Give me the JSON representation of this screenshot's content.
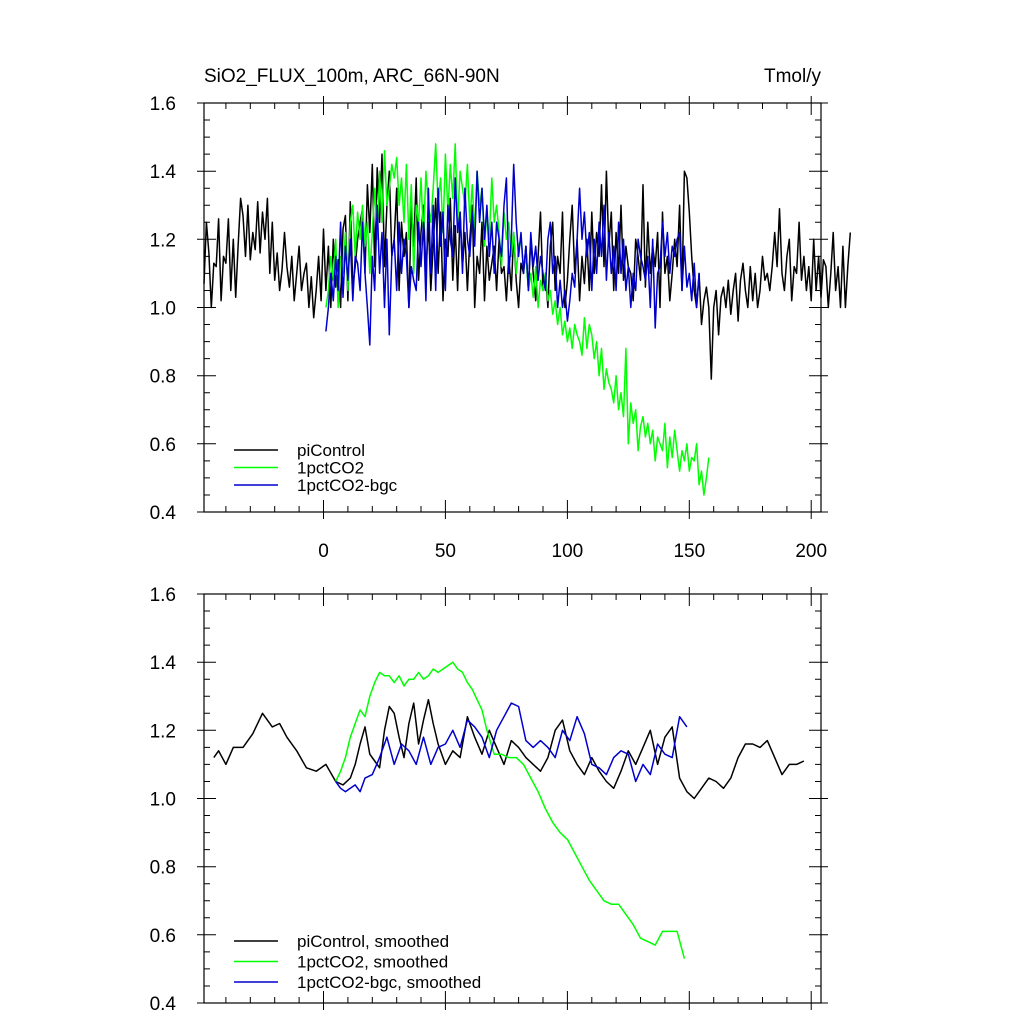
{
  "chart_data": [
    {
      "type": "line",
      "title": "SiO2_FLUX_100m, ARC_66N-90N",
      "units": "Tmol/y",
      "xlim": [
        -49,
        204
      ],
      "ylim": [
        0.4,
        1.6
      ],
      "xticks": [
        0,
        50,
        100,
        150,
        200
      ],
      "xtick_labels": [
        "0",
        "50",
        "100",
        "150",
        "200"
      ],
      "yticks": [
        0.4,
        0.6,
        0.8,
        1.0,
        1.2,
        1.4,
        1.6
      ],
      "ytick_labels": [
        "0.4",
        "0.6",
        "0.8",
        "1.0",
        "1.2",
        "1.4",
        "1.6"
      ],
      "legend_position": "bottom-left",
      "series": [
        {
          "name": "piControl",
          "color": "#000000",
          "x0": -49,
          "values": [
            1.07,
            1.25,
            1.16,
            1.0,
            1.13,
            1.12,
            1.26,
            1.02,
            1.15,
            1.13,
            1.26,
            1.05,
            1.2,
            1.03,
            1.18,
            1.32,
            1.27,
            1.15,
            1.3,
            1.14,
            1.22,
            1.17,
            1.31,
            1.16,
            1.28,
            1.2,
            1.32,
            1.1,
            1.25,
            1.08,
            1.16,
            1.05,
            1.11,
            1.22,
            1.12,
            1.06,
            1.15,
            1.02,
            1.1,
            1.18,
            1.05,
            1.1,
            1.13,
            1.0,
            1.09,
            0.97,
            1.05,
            1.15,
            1.02,
            1.23,
            1.05,
            1.18,
            1.0,
            1.2,
            1.06,
            1.14,
            1.0,
            1.23,
            1.27,
            1.02,
            1.31,
            1.06,
            1.12,
            1.2,
            1.25,
            1.29,
            1.1,
            1.36,
            1.22,
            1.42,
            1.12,
            1.41,
            1.25,
            1.45,
            1.12,
            1.3,
            1.4,
            1.15,
            1.2,
            1.35,
            1.05,
            1.25,
            1.15,
            1.22,
            1.0,
            1.3,
            1.18,
            1.38,
            1.08,
            1.22,
            1.3,
            1.1,
            1.25,
            1.05,
            1.18,
            1.32,
            1.1,
            1.28,
            1.02,
            1.2,
            1.15,
            1.32,
            1.08,
            1.24,
            1.05,
            1.28,
            1.12,
            1.22,
            1.05,
            1.2,
            1.3,
            1.0,
            1.15,
            1.1,
            1.25,
            1.02,
            1.18,
            1.08,
            1.13,
            1.18,
            1.05,
            1.2,
            1.1,
            1.12,
            1.02,
            1.15,
            1.05,
            1.22,
            1.08,
            1.0,
            1.13,
            1.1,
            1.18,
            1.05,
            1.2,
            1.1,
            1.02,
            1.15,
            1.28,
            1.05,
            1.1,
            1.0,
            1.18,
            1.25,
            1.05,
            1.15,
            1.1,
            1.28,
            1.0,
            1.08,
            1.2,
            1.3,
            1.1,
            1.2,
            1.02,
            1.15,
            1.07,
            1.2,
            1.05,
            1.28,
            1.1,
            1.22,
            1.15,
            1.36,
            1.12,
            1.4,
            1.18,
            1.28,
            1.05,
            1.22,
            1.1,
            1.3,
            1.08,
            1.18,
            1.12,
            1.1,
            1.02,
            1.2,
            1.15,
            1.08,
            1.36,
            1.06,
            1.25,
            1.1,
            1.18,
            1.12,
            1.22,
            1.0,
            1.28,
            1.1,
            1.15,
            1.02,
            1.1,
            1.2,
            1.12,
            1.3,
            1.05,
            1.4,
            1.38,
            1.28,
            1.15,
            1.05,
            1.0,
            1.1,
            0.95,
            1.02,
            1.06,
            1.0,
            0.79,
            1.0,
            1.05,
            0.92,
            1.03,
            1.06,
            1.0,
            1.08,
            0.98,
            1.05,
            1.1,
            0.96,
            1.08,
            1.13,
            1.05,
            1.0,
            1.12,
            1.02,
            1.1,
            1.0,
            1.05,
            1.15,
            1.08,
            1.1,
            1.05,
            1.12,
            1.22,
            1.12,
            1.29,
            1.1,
            1.05,
            1.15,
            1.2,
            1.02,
            1.12,
            1.1,
            1.25,
            1.08,
            1.15,
            1.05,
            1.12,
            1.02,
            1.2,
            1.05,
            1.15,
            1.03,
            1.14,
            1.12,
            1.0,
            1.1,
            1.22,
            1.05,
            1.12,
            1.0,
            1.18,
            1.0,
            1.12,
            1.22
          ]
        },
        {
          "name": "1pctCO2",
          "color": "#00ff00",
          "x0": 1,
          "values": [
            1.0,
            1.05,
            1.15,
            1.08,
            1.2,
            1.0,
            1.15,
            1.1,
            1.22,
            1.05,
            1.25,
            1.3,
            1.15,
            1.28,
            1.2,
            1.3,
            1.18,
            1.25,
            1.1,
            1.22,
            1.35,
            1.2,
            1.4,
            1.25,
            1.46,
            1.3,
            1.35,
            1.42,
            1.38,
            1.44,
            1.3,
            1.38,
            1.25,
            1.42,
            1.2,
            1.36,
            1.1,
            1.3,
            1.25,
            1.38,
            1.2,
            1.4,
            1.3,
            1.25,
            1.35,
            1.48,
            1.3,
            1.38,
            1.22,
            1.45,
            1.28,
            1.42,
            1.32,
            1.48,
            1.25,
            1.4,
            1.35,
            1.3,
            1.42,
            1.25,
            1.36,
            1.22,
            1.4,
            1.3,
            1.35,
            1.18,
            1.28,
            1.2,
            1.38,
            1.25,
            1.3,
            1.22,
            1.12,
            1.28,
            1.2,
            1.25,
            1.15,
            1.22,
            1.1,
            1.18,
            1.2,
            1.12,
            1.15,
            1.05,
            1.1,
            1.03,
            1.12,
            1.0,
            1.08,
            1.05,
            1.1,
            1.02,
            1.05,
            0.98,
            1.02,
            0.95,
            1.0,
            0.92,
            0.96,
            0.9,
            0.94,
            0.88,
            0.95,
            0.92,
            0.9,
            0.86,
            0.97,
            0.88,
            0.95,
            0.92,
            0.85,
            0.9,
            0.8,
            0.88,
            0.76,
            0.82,
            0.78,
            0.76,
            0.72,
            0.8,
            0.7,
            0.75,
            0.68,
            0.88,
            0.6,
            0.72,
            0.66,
            0.7,
            0.58,
            0.65,
            0.68,
            0.62,
            0.66,
            0.6,
            0.64,
            0.55,
            0.62,
            0.6,
            0.58,
            0.66,
            0.53,
            0.62,
            0.56,
            0.64,
            0.58,
            0.52,
            0.58,
            0.55,
            0.6,
            0.52,
            0.56,
            0.55,
            0.6,
            0.48,
            0.52,
            0.45,
            0.5,
            0.56
          ]
        },
        {
          "name": "1pctCO2-bgc",
          "color": "#0000cc",
          "x0": 1,
          "values": [
            0.93,
            1.0,
            1.1,
            1.02,
            1.15,
            1.05,
            1.25,
            1.03,
            1.18,
            1.08,
            1.2,
            1.02,
            1.15,
            1.13,
            1.05,
            1.25,
            1.1,
            1.0,
            0.89,
            1.15,
            1.05,
            1.3,
            1.1,
            1.22,
            1.0,
            1.2,
            0.92,
            1.15,
            1.2,
            1.05,
            1.25,
            1.1,
            1.2,
            1.15,
            1.0,
            1.12,
            1.08,
            1.05,
            1.25,
            1.12,
            1.25,
            1.02,
            1.35,
            1.1,
            1.3,
            1.05,
            1.35,
            1.18,
            1.28,
            1.05,
            1.3,
            1.2,
            1.15,
            1.38,
            1.22,
            1.28,
            1.1,
            1.35,
            1.2,
            1.15,
            1.28,
            1.18,
            1.4,
            1.25,
            1.35,
            1.2,
            1.3,
            1.15,
            1.25,
            1.1,
            1.25,
            1.2,
            1.15,
            1.3,
            1.38,
            1.1,
            1.2,
            1.42,
            1.25,
            1.15,
            1.22,
            1.1,
            1.18,
            1.05,
            1.22,
            1.12,
            1.18,
            1.08,
            1.15,
            1.1,
            1.05,
            1.2,
            1.25,
            1.1,
            1.15,
            1.0,
            1.08,
            1.0,
            1.05,
            0.96,
            1.02,
            1.1,
            1.06,
            1.2,
            1.35,
            1.2,
            1.28,
            1.15,
            1.22,
            1.05,
            1.2,
            1.1,
            1.25,
            1.15,
            1.3,
            1.08,
            1.22,
            1.1,
            1.18,
            1.05,
            1.25,
            1.1,
            1.2,
            1.05,
            1.12,
            1.0,
            1.1,
            1.05,
            1.2,
            1.15,
            1.12,
            1.08,
            1.15,
            1.0,
            1.2,
            0.94,
            1.1,
            1.12,
            1.25,
            1.15,
            1.22,
            1.1,
            1.18,
            1.15,
            1.2,
            1.22,
            1.05,
            1.18,
            1.06,
            1.1,
            1.02,
            1.13,
            1.0,
            1.1
          ]
        }
      ]
    },
    {
      "type": "line",
      "xlim": [
        -49,
        204
      ],
      "ylim": [
        0.4,
        1.6
      ],
      "xticks": [
        0,
        50,
        100,
        150,
        200
      ],
      "yticks": [
        0.4,
        0.6,
        0.8,
        1.0,
        1.2,
        1.4,
        1.6
      ],
      "ytick_labels": [
        "0.4",
        "0.6",
        "0.8",
        "1.0",
        "1.2",
        "1.4",
        "1.6"
      ],
      "legend_position": "bottom-left",
      "series": [
        {
          "name": "piControl, smoothed",
          "color": "#000000",
          "x": [
            -45,
            -43,
            -40,
            -37,
            -33,
            -29,
            -25,
            -21,
            -18,
            -15,
            -11,
            -7,
            -3,
            1,
            5,
            8,
            11,
            13,
            15,
            17,
            19,
            21,
            23,
            25,
            27,
            29,
            31,
            33,
            35,
            37,
            39,
            41,
            43,
            45,
            47,
            50,
            53,
            56,
            59,
            62,
            65,
            68,
            71,
            74,
            77,
            80,
            83,
            86,
            89,
            92,
            95,
            98,
            101,
            104,
            107,
            110,
            113,
            116,
            119,
            122,
            125,
            128,
            131,
            134,
            137,
            140,
            143,
            146,
            149,
            152,
            155,
            158,
            161,
            164,
            167,
            170,
            173,
            176,
            179,
            182,
            185,
            188,
            191,
            194,
            197
          ],
          "values": [
            1.12,
            1.14,
            1.1,
            1.15,
            1.15,
            1.19,
            1.25,
            1.21,
            1.22,
            1.18,
            1.14,
            1.09,
            1.08,
            1.1,
            1.05,
            1.04,
            1.06,
            1.1,
            1.16,
            1.21,
            1.13,
            1.11,
            1.09,
            1.2,
            1.27,
            1.25,
            1.18,
            1.12,
            1.22,
            1.28,
            1.16,
            1.23,
            1.29,
            1.22,
            1.16,
            1.1,
            1.14,
            1.12,
            1.24,
            1.18,
            1.13,
            1.2,
            1.15,
            1.1,
            1.17,
            1.15,
            1.12,
            1.1,
            1.08,
            1.12,
            1.2,
            1.23,
            1.14,
            1.1,
            1.07,
            1.12,
            1.08,
            1.05,
            1.03,
            1.08,
            1.14,
            1.1,
            1.15,
            1.2,
            1.1,
            1.18,
            1.21,
            1.06,
            1.02,
            1.0,
            1.03,
            1.06,
            1.05,
            1.03,
            1.06,
            1.12,
            1.16,
            1.16,
            1.15,
            1.17,
            1.12,
            1.07,
            1.1,
            1.1,
            1.11
          ]
        },
        {
          "name": "1pctCO2, smoothed",
          "color": "#00ff00",
          "x": [
            5,
            7,
            9,
            11,
            13,
            15,
            17,
            19,
            21,
            23,
            25,
            27,
            29,
            31,
            33,
            35,
            37,
            39,
            41,
            43,
            45,
            47,
            49,
            51,
            53,
            55,
            57,
            59,
            61,
            63,
            65,
            67,
            70,
            73,
            76,
            79,
            82,
            85,
            88,
            91,
            94,
            97,
            100,
            103,
            106,
            109,
            112,
            115,
            118,
            121,
            124,
            127,
            130,
            133,
            136,
            139,
            142,
            145,
            148
          ],
          "values": [
            1.05,
            1.08,
            1.12,
            1.18,
            1.22,
            1.26,
            1.24,
            1.3,
            1.34,
            1.37,
            1.36,
            1.36,
            1.34,
            1.36,
            1.33,
            1.35,
            1.35,
            1.37,
            1.35,
            1.36,
            1.38,
            1.37,
            1.38,
            1.39,
            1.4,
            1.38,
            1.37,
            1.34,
            1.32,
            1.29,
            1.26,
            1.2,
            1.13,
            1.13,
            1.12,
            1.12,
            1.1,
            1.06,
            1.02,
            0.97,
            0.93,
            0.9,
            0.88,
            0.84,
            0.8,
            0.76,
            0.73,
            0.7,
            0.69,
            0.69,
            0.66,
            0.63,
            0.59,
            0.58,
            0.57,
            0.61,
            0.61,
            0.61,
            0.53
          ]
        },
        {
          "name": "1pctCO2-bgc, smoothed",
          "color": "#0000cc",
          "x": [
            5,
            7,
            9,
            11,
            13,
            15,
            17,
            20,
            23,
            26,
            29,
            32,
            35,
            38,
            41,
            44,
            47,
            50,
            53,
            56,
            59,
            62,
            65,
            68,
            71,
            74,
            77,
            80,
            83,
            86,
            89,
            92,
            95,
            98,
            101,
            104,
            107,
            110,
            113,
            116,
            119,
            122,
            125,
            128,
            131,
            134,
            137,
            140,
            143,
            146,
            149
          ],
          "values": [
            1.05,
            1.03,
            1.02,
            1.03,
            1.04,
            1.02,
            1.06,
            1.07,
            1.12,
            1.18,
            1.1,
            1.16,
            1.14,
            1.1,
            1.18,
            1.1,
            1.15,
            1.16,
            1.2,
            1.15,
            1.23,
            1.21,
            1.18,
            1.12,
            1.2,
            1.24,
            1.28,
            1.27,
            1.17,
            1.15,
            1.17,
            1.15,
            1.12,
            1.2,
            1.17,
            1.24,
            1.19,
            1.1,
            1.09,
            1.07,
            1.12,
            1.14,
            1.13,
            1.05,
            1.1,
            1.07,
            1.16,
            1.13,
            1.12,
            1.24,
            1.21
          ]
        }
      ]
    }
  ]
}
